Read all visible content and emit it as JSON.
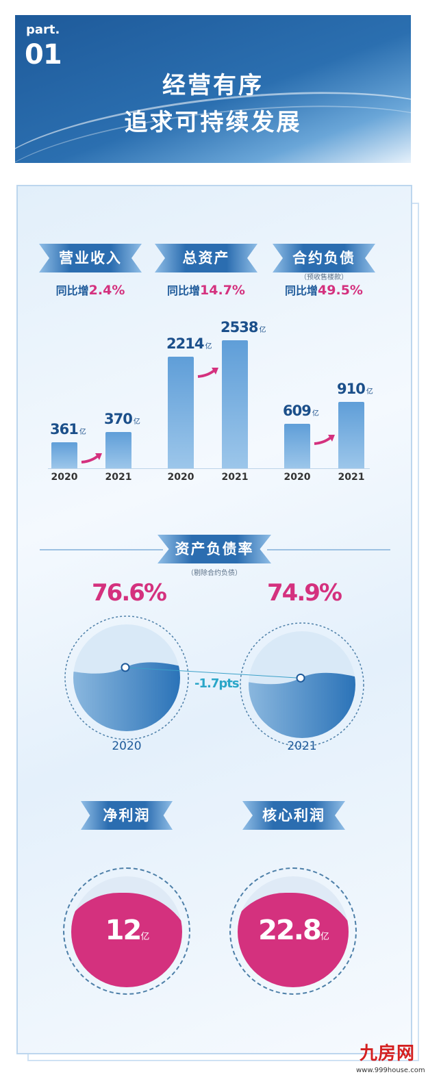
{
  "header": {
    "part_label": "part.",
    "part_number": "01",
    "title_line1": "经营有序",
    "title_line2": "追求可持续发展"
  },
  "metrics": [
    {
      "label": "营业收入",
      "note": "",
      "yoy_prefix": "同比增",
      "yoy": "2.4%"
    },
    {
      "label": "总资产",
      "note": "",
      "yoy_prefix": "同比增",
      "yoy": "14.7%"
    },
    {
      "label": "合约负债",
      "note": "（预收售楼款）",
      "yoy_prefix": "同比增",
      "yoy": "49.5%"
    }
  ],
  "chart_data": [
    {
      "type": "bar",
      "title": "营业收入",
      "categories": [
        "2020",
        "2021"
      ],
      "values": [
        361,
        370
      ],
      "unit": "亿",
      "value_labels": [
        "361",
        "370"
      ]
    },
    {
      "type": "bar",
      "title": "总资产",
      "categories": [
        "2020",
        "2021"
      ],
      "values": [
        2214,
        2538
      ],
      "unit": "亿",
      "value_labels": [
        "2214",
        "2538"
      ]
    },
    {
      "type": "bar",
      "title": "合约负债",
      "categories": [
        "2020",
        "2021"
      ],
      "values": [
        609,
        910
      ],
      "unit": "亿",
      "value_labels": [
        "609",
        "910"
      ]
    },
    {
      "type": "gauge",
      "title": "资产负债率",
      "subtitle": "（剔除合约负债）",
      "categories": [
        "2020",
        "2021"
      ],
      "values": [
        76.6,
        74.9
      ],
      "value_labels": [
        "76.6%",
        "74.9%"
      ],
      "change_label": "-1.7pts"
    }
  ],
  "profit": [
    {
      "label": "净利润",
      "value": "12",
      "unit": "亿"
    },
    {
      "label": "核心利润",
      "value": "22.8",
      "unit": "亿"
    }
  ],
  "colors": {
    "primary": "#2b6db0",
    "accent": "#d4317e",
    "bar": "#5f9ed8"
  },
  "watermark": {
    "brand": "九房网",
    "url": "www.999house.com"
  }
}
